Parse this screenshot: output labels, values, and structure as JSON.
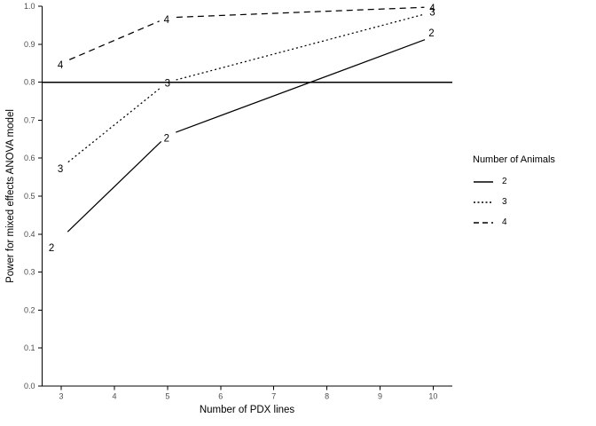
{
  "chart_data": {
    "type": "line",
    "title": "",
    "xlabel": "Number of PDX lines",
    "ylabel": "Power for mixed effects ANOVA model",
    "x": [
      3,
      5,
      10
    ],
    "series": [
      {
        "name": "2",
        "linestyle": "solid",
        "values": [
          0.39,
          0.66,
          0.92
        ],
        "label_offsets": [
          [
            -11,
            11
          ],
          [
            -1,
            3
          ],
          [
            -2,
            -4
          ]
        ]
      },
      {
        "name": "3",
        "linestyle": "dotted",
        "values": [
          0.575,
          0.8,
          0.985
        ],
        "label_offsets": [
          [
            -1,
            1
          ],
          [
            0,
            1
          ],
          [
            -1,
            0
          ]
        ]
      },
      {
        "name": "4",
        "linestyle": "dashed",
        "values": [
          0.85,
          0.97,
          0.998
        ],
        "label_offsets": [
          [
            -1,
            2
          ],
          [
            -1,
            2
          ],
          [
            -1,
            1
          ]
        ]
      }
    ],
    "point_labels": "series name shown at each data point",
    "reference_line_y": 0.8,
    "x_ticks": [
      "3",
      "4",
      "5",
      "6",
      "7",
      "8",
      "9",
      "10"
    ],
    "y_ticks": [
      "0.0",
      "0.1",
      "0.2",
      "0.3",
      "0.4",
      "0.5",
      "0.6",
      "0.7",
      "0.8",
      "0.9",
      "1.0"
    ],
    "xlim": [
      2.64,
      10.36
    ],
    "ylim": [
      0,
      1
    ],
    "grid": false,
    "legend": {
      "title": "Number of Animals",
      "position": "right",
      "entries": [
        {
          "label": "2",
          "linestyle": "solid"
        },
        {
          "label": "3",
          "linestyle": "dotted"
        },
        {
          "label": "4",
          "linestyle": "dashed"
        }
      ]
    },
    "colors": {
      "line": "#000000",
      "axis_text": "#4d4d4d",
      "background": "#ffffff"
    }
  }
}
